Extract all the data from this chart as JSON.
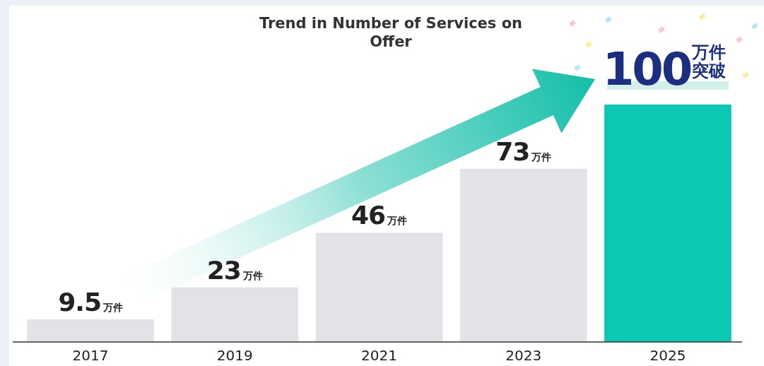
{
  "chart_data": {
    "type": "bar",
    "title": "Trend in Number of Services on Offer",
    "categories": [
      "2017",
      "2019",
      "2021",
      "2023",
      "2025"
    ],
    "values": [
      9.5,
      23,
      46,
      73,
      100
    ],
    "colors": [
      "#e1e3e6",
      "#e1e3e6",
      "#e1e3e6",
      "#e1e3e6",
      "#0ac8b4"
    ],
    "value_labels": [
      "9.5万件",
      "23万件",
      "46万件",
      "73万件",
      "100万件突破"
    ]
  }
}
